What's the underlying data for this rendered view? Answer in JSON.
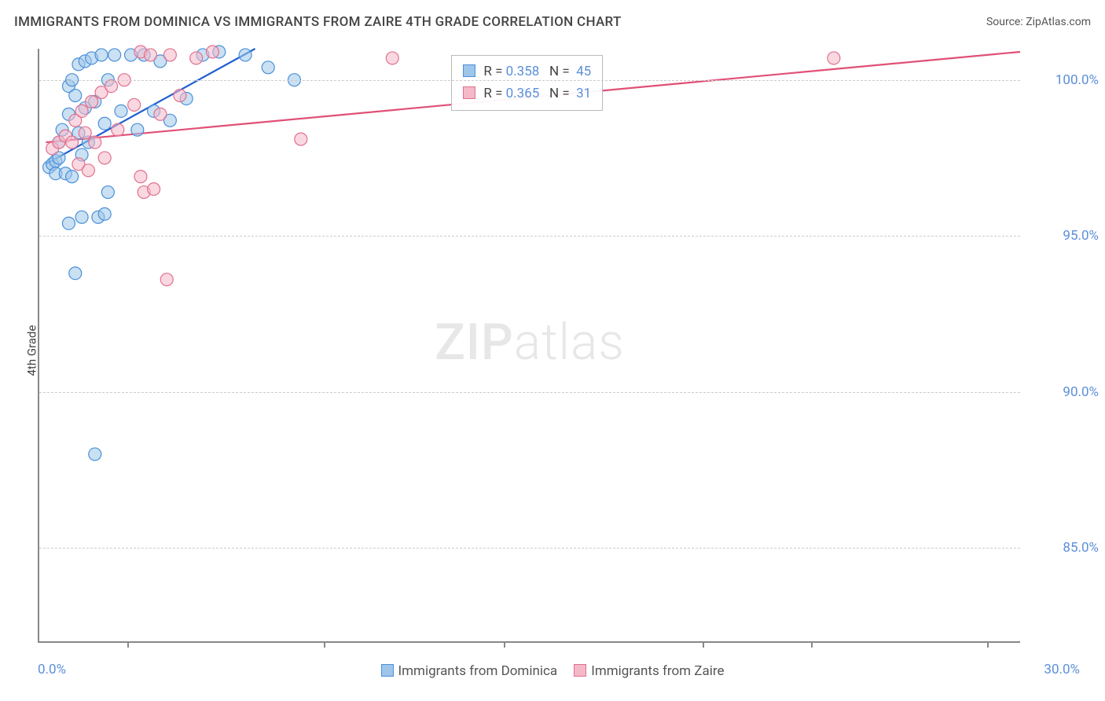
{
  "header": {
    "title": "IMMIGRANTS FROM DOMINICA VS IMMIGRANTS FROM ZAIRE 4TH GRADE CORRELATION CHART",
    "source_prefix": "Source: ",
    "source_name": "ZipAtlas.com"
  },
  "axes": {
    "y_title": "4th Grade",
    "x_min_label": "0.0%",
    "x_max_label": "30.0%",
    "x_min": 0.0,
    "x_max": 30.0,
    "y_min": 82.0,
    "y_max": 101.0,
    "y_ticks": [
      85.0,
      90.0,
      95.0,
      100.0
    ],
    "y_tick_labels": [
      "85.0%",
      "90.0%",
      "95.0%",
      "100.0%"
    ],
    "x_tick_positions": [
      2.7,
      8.7,
      14.2,
      20.3,
      23.6,
      29.0
    ],
    "grid_color": "#cccccc",
    "axis_color": "#888888",
    "label_color": "#5b8fd9",
    "label_fontsize": 17
  },
  "series": {
    "a": {
      "name": "Immigrants from Dominica",
      "marker_radius": 8,
      "fill": "#9ec6ea",
      "fill_opacity": 0.55,
      "stroke": "#4a90d9",
      "stroke_width": 1.2,
      "line_color": "#1f5fd0",
      "line_width": 2.2,
      "trend": {
        "x1": 0.2,
        "y1": 97.3,
        "x2": 6.6,
        "y2": 101.0
      },
      "R": "0.358",
      "N": "45",
      "points": [
        [
          0.3,
          97.2
        ],
        [
          0.4,
          97.3
        ],
        [
          0.5,
          97.4
        ],
        [
          0.5,
          97.0
        ],
        [
          0.6,
          97.5
        ],
        [
          0.6,
          98.0
        ],
        [
          0.7,
          98.4
        ],
        [
          0.8,
          97.0
        ],
        [
          0.9,
          98.9
        ],
        [
          0.9,
          99.8
        ],
        [
          1.0,
          96.9
        ],
        [
          1.0,
          100.0
        ],
        [
          1.1,
          99.5
        ],
        [
          1.2,
          98.3
        ],
        [
          1.2,
          100.5
        ],
        [
          1.3,
          97.6
        ],
        [
          1.4,
          99.1
        ],
        [
          1.4,
          100.6
        ],
        [
          1.5,
          98.0
        ],
        [
          1.6,
          100.7
        ],
        [
          1.7,
          99.3
        ],
        [
          1.8,
          95.6
        ],
        [
          1.9,
          100.8
        ],
        [
          2.0,
          98.6
        ],
        [
          2.1,
          96.4
        ],
        [
          2.1,
          100.0
        ],
        [
          2.3,
          100.8
        ],
        [
          2.5,
          99.0
        ],
        [
          2.8,
          100.8
        ],
        [
          3.0,
          98.4
        ],
        [
          3.2,
          100.8
        ],
        [
          3.5,
          99.0
        ],
        [
          3.7,
          100.6
        ],
        [
          4.0,
          98.7
        ],
        [
          4.5,
          99.4
        ],
        [
          5.0,
          100.8
        ],
        [
          5.5,
          100.9
        ],
        [
          6.3,
          100.8
        ],
        [
          7.0,
          100.4
        ],
        [
          7.8,
          100.0
        ],
        [
          1.1,
          93.8
        ],
        [
          1.7,
          88.0
        ],
        [
          0.9,
          95.4
        ],
        [
          1.3,
          95.6
        ],
        [
          2.0,
          95.7
        ]
      ]
    },
    "b": {
      "name": "Immigrants from Zaire",
      "marker_radius": 8,
      "fill": "#f5b8c9",
      "fill_opacity": 0.55,
      "stroke": "#e0718f",
      "stroke_width": 1.2,
      "line_color": "#e05075",
      "line_width": 2.2,
      "trend": {
        "x1": 0.2,
        "y1": 98.0,
        "x2": 30.0,
        "y2": 100.9
      },
      "R": "0.365",
      "N": "31",
      "points": [
        [
          0.4,
          97.8
        ],
        [
          0.6,
          98.0
        ],
        [
          0.8,
          98.2
        ],
        [
          1.0,
          98.0
        ],
        [
          1.1,
          98.7
        ],
        [
          1.2,
          97.3
        ],
        [
          1.3,
          99.0
        ],
        [
          1.4,
          98.3
        ],
        [
          1.6,
          99.3
        ],
        [
          1.7,
          98.0
        ],
        [
          1.9,
          99.6
        ],
        [
          2.0,
          97.5
        ],
        [
          2.2,
          99.8
        ],
        [
          2.4,
          98.4
        ],
        [
          2.6,
          100.0
        ],
        [
          2.9,
          99.2
        ],
        [
          3.1,
          100.9
        ],
        [
          3.4,
          100.8
        ],
        [
          3.7,
          98.9
        ],
        [
          4.0,
          100.8
        ],
        [
          4.3,
          99.5
        ],
        [
          4.8,
          100.7
        ],
        [
          5.3,
          100.9
        ],
        [
          3.2,
          96.4
        ],
        [
          3.5,
          96.5
        ],
        [
          1.5,
          97.1
        ],
        [
          3.1,
          96.9
        ],
        [
          8.0,
          98.1
        ],
        [
          10.8,
          100.7
        ],
        [
          24.3,
          100.7
        ],
        [
          3.9,
          93.6
        ]
      ]
    }
  },
  "bottom_legend": {
    "items": [
      {
        "label": "Immigrants from Dominica",
        "fill": "#9ec6ea",
        "stroke": "#4a90d9"
      },
      {
        "label": "Immigrants from Zaire",
        "fill": "#f5b8c9",
        "stroke": "#e0718f"
      }
    ]
  },
  "stat_box": {
    "left_pct": 42.0,
    "top_pct": 1.0,
    "rows": [
      {
        "swatch_fill": "#9ec6ea",
        "swatch_stroke": "#4a90d9",
        "R": "0.358",
        "N": "45"
      },
      {
        "swatch_fill": "#f5b8c9",
        "swatch_stroke": "#e0718f",
        "R": "0.365",
        "N": "31"
      }
    ]
  },
  "watermark": {
    "text_bold": "ZIP",
    "text_rest": "atlas"
  },
  "colors": {
    "background": "#ffffff",
    "text": "#444444",
    "value": "#5b8fd9"
  }
}
